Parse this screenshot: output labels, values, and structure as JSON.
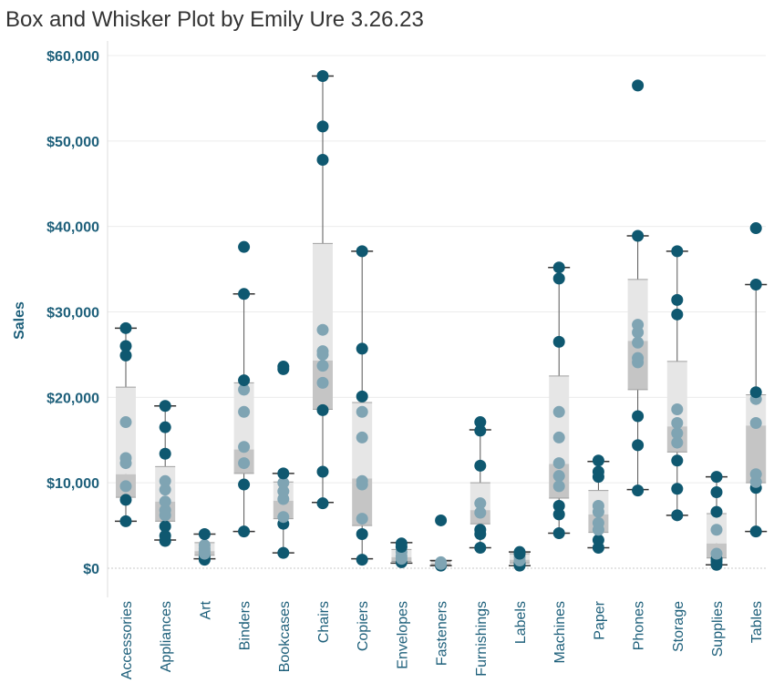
{
  "page": {
    "title": "Box and Whisker Plot by Emily Ure 3.26.23"
  },
  "colors": {
    "point": "#0f5870",
    "point_light": "#7fa4b3",
    "box_upper": "#e6e6e6",
    "box_lower": "#c5c5c5",
    "axis_text": "#1d5f7a",
    "gridline": "#ececec",
    "zero_line": "#c8c8c8",
    "whisker": "#555555"
  },
  "chart_data": {
    "type": "box",
    "ylabel": "Sales",
    "xlabel": "",
    "ylim": [
      -3500,
      62000
    ],
    "y_ticks": [
      0,
      10000,
      20000,
      30000,
      40000,
      50000,
      60000
    ],
    "y_tick_labels": [
      "$0",
      "$10,000",
      "$20,000",
      "$30,000",
      "$40,000",
      "$50,000",
      "$60,000"
    ],
    "grid": true,
    "categories": [
      "Accessories",
      "Appliances",
      "Art",
      "Binders",
      "Bookcases",
      "Chairs",
      "Copiers",
      "Envelopes",
      "Fasteners",
      "Furnishings",
      "Labels",
      "Machines",
      "Paper",
      "Phones",
      "Storage",
      "Supplies",
      "Tables"
    ],
    "boxes": [
      {
        "category": "Accessories",
        "whisker_low": 5500,
        "q1": 8300,
        "median": 11000,
        "q3": 21200,
        "whisker_high": 28100
      },
      {
        "category": "Appliances",
        "whisker_low": 3300,
        "q1": 5500,
        "median": 7800,
        "q3": 11900,
        "whisker_high": 19000
      },
      {
        "category": "Art",
        "whisker_low": 1100,
        "q1": 1500,
        "median": 2000,
        "q3": 3000,
        "whisker_high": 4000
      },
      {
        "category": "Binders",
        "whisker_low": 4300,
        "q1": 11100,
        "median": 13900,
        "q3": 21700,
        "whisker_high": 32100
      },
      {
        "category": "Bookcases",
        "whisker_low": 1800,
        "q1": 5800,
        "median": 7900,
        "q3": 10100,
        "whisker_high": 11100
      },
      {
        "category": "Chairs",
        "whisker_low": 7700,
        "q1": 18600,
        "median": 24300,
        "q3": 38000,
        "whisker_high": 57600
      },
      {
        "category": "Copiers",
        "whisker_low": 1100,
        "q1": 5000,
        "median": 10500,
        "q3": 19400,
        "whisker_high": 37100
      },
      {
        "category": "Envelopes",
        "whisker_low": 600,
        "q1": 800,
        "median": 1300,
        "q3": 2200,
        "whisker_high": 3000
      },
      {
        "category": "Fasteners",
        "whisker_low": 300,
        "q1": 400,
        "median": 600,
        "q3": 800,
        "whisker_high": 900
      },
      {
        "category": "Furnishings",
        "whisker_low": 2400,
        "q1": 5200,
        "median": 6800,
        "q3": 10000,
        "whisker_high": 16200
      },
      {
        "category": "Labels",
        "whisker_low": 300,
        "q1": 600,
        "median": 1000,
        "q3": 1700,
        "whisker_high": 1900
      },
      {
        "category": "Machines",
        "whisker_low": 4100,
        "q1": 8200,
        "median": 12200,
        "q3": 22500,
        "whisker_high": 35200
      },
      {
        "category": "Paper",
        "whisker_low": 2400,
        "q1": 4200,
        "median": 6300,
        "q3": 9100,
        "whisker_high": 12500
      },
      {
        "category": "Phones",
        "whisker_low": 9200,
        "q1": 20900,
        "median": 26600,
        "q3": 33800,
        "whisker_high": 38900
      },
      {
        "category": "Storage",
        "whisker_low": 6200,
        "q1": 13600,
        "median": 16600,
        "q3": 24200,
        "whisker_high": 37100
      },
      {
        "category": "Supplies",
        "whisker_low": 400,
        "q1": 1200,
        "median": 2900,
        "q3": 6400,
        "whisker_high": 10700
      },
      {
        "category": "Tables",
        "whisker_low": 4300,
        "q1": 10000,
        "median": 16700,
        "q3": 20300,
        "whisker_high": 33200
      }
    ],
    "points": [
      {
        "category": "Accessories",
        "values": [
          5500,
          8000,
          9600,
          12300,
          12900,
          17100,
          24900,
          26000,
          28100
        ]
      },
      {
        "category": "Appliances",
        "values": [
          3200,
          3800,
          4900,
          6200,
          6800,
          7800,
          9200,
          10200,
          13400,
          16500,
          19000
        ]
      },
      {
        "category": "Art",
        "values": [
          1000,
          1400,
          1700,
          2000,
          2300,
          2700,
          4000
        ]
      },
      {
        "category": "Binders",
        "values": [
          4300,
          9800,
          12300,
          14200,
          18300,
          20900,
          22000,
          32100,
          37600
        ]
      },
      {
        "category": "Bookcases",
        "values": [
          1800,
          5200,
          6000,
          8100,
          9000,
          10000,
          11100,
          23300,
          23600
        ]
      },
      {
        "category": "Chairs",
        "values": [
          7600,
          11300,
          18500,
          21700,
          23700,
          25000,
          25400,
          27900,
          47800,
          51700,
          57600
        ]
      },
      {
        "category": "Copiers",
        "values": [
          1000,
          4000,
          5800,
          9800,
          10200,
          15300,
          18300,
          20100,
          25700,
          37100
        ]
      },
      {
        "category": "Envelopes",
        "values": [
          700,
          1100,
          1400,
          1900,
          2500,
          2900
        ]
      },
      {
        "category": "Fasteners",
        "values": [
          300,
          500,
          700,
          5600
        ]
      },
      {
        "category": "Furnishings",
        "values": [
          2400,
          4000,
          4500,
          6500,
          7600,
          12000,
          16100,
          17100
        ]
      },
      {
        "category": "Labels",
        "values": [
          300,
          600,
          900,
          1300,
          1700,
          1900
        ]
      },
      {
        "category": "Machines",
        "values": [
          4100,
          6300,
          7300,
          9600,
          10800,
          12300,
          15300,
          18300,
          26500,
          33900,
          35200
        ]
      },
      {
        "category": "Paper",
        "values": [
          2400,
          3300,
          4500,
          5300,
          6600,
          7300,
          10700,
          11300,
          12600
        ]
      },
      {
        "category": "Phones",
        "values": [
          9100,
          14400,
          17800,
          24100,
          24600,
          26400,
          27600,
          28500,
          38900,
          56500
        ]
      },
      {
        "category": "Storage",
        "values": [
          6200,
          9300,
          12600,
          14700,
          15800,
          17000,
          18600,
          29700,
          31400,
          37100
        ]
      },
      {
        "category": "Supplies",
        "values": [
          400,
          800,
          1100,
          1700,
          4500,
          6600,
          8900,
          10700
        ]
      },
      {
        "category": "Tables",
        "values": [
          4300,
          9400,
          10100,
          11000,
          17000,
          19800,
          20600,
          33200,
          39800
        ]
      }
    ]
  }
}
